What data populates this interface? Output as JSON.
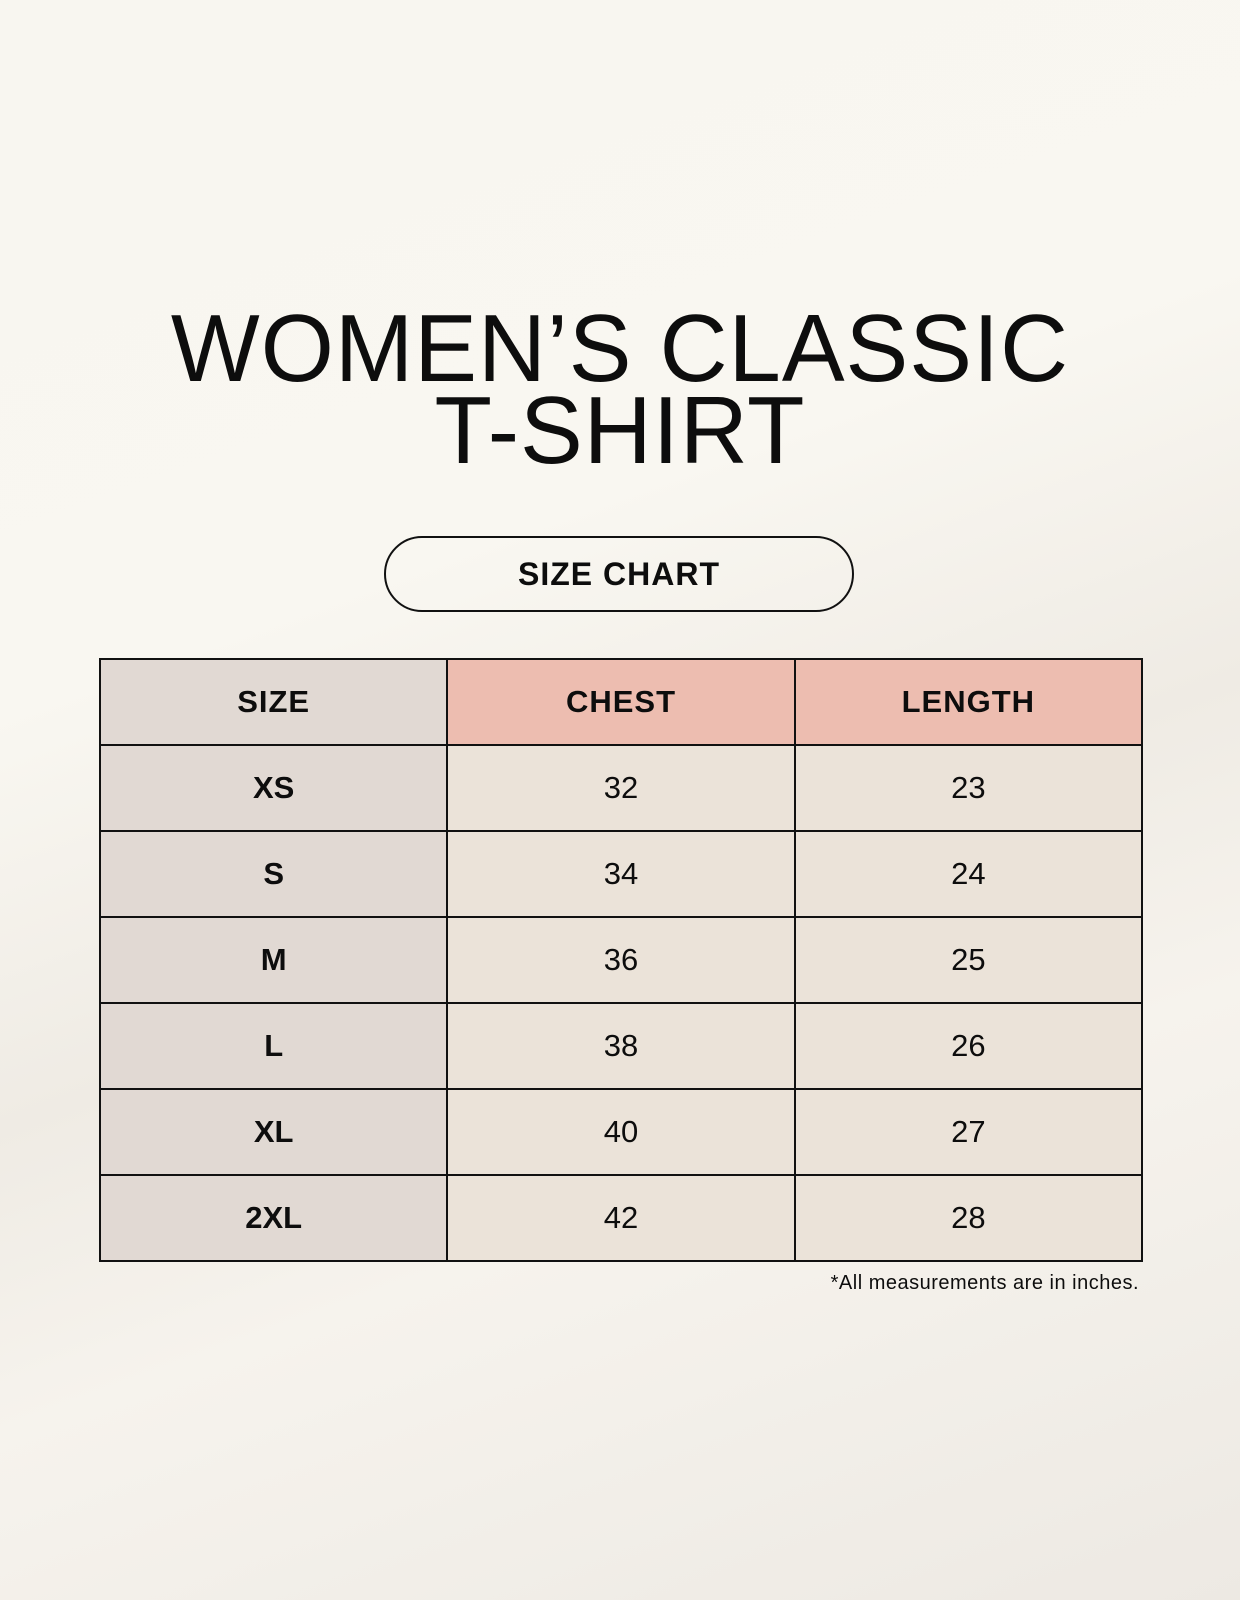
{
  "title": {
    "line1": "WOMEN’S CLASSIC",
    "line2": "T-SHIRT"
  },
  "subtitle": "SIZE CHART",
  "table": {
    "headers": [
      "SIZE",
      "CHEST",
      "LENGTH"
    ],
    "rows": [
      [
        "XS",
        "32",
        "23"
      ],
      [
        "S",
        "34",
        "24"
      ],
      [
        "M",
        "36",
        "25"
      ],
      [
        "L",
        "38",
        "26"
      ],
      [
        "XL",
        "40",
        "27"
      ],
      [
        "2XL",
        "42",
        "28"
      ]
    ]
  },
  "footnote": "*All measurements are in inches.",
  "colors": {
    "size_column": "#e1d9d3",
    "header_accent": "#edbdb0",
    "value_cells": "#ebe3d9"
  }
}
